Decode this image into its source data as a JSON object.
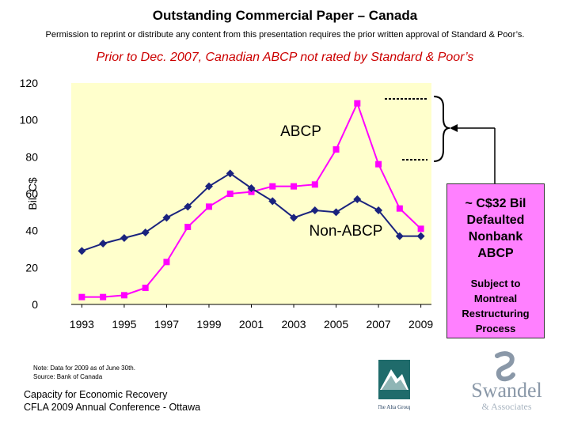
{
  "page": {
    "title": "Outstanding Commercial Paper – Canada",
    "permission": "Permission to reprint or distribute any content from this presentation requires the prior written approval of Standard & Poor’s.",
    "subtitle": "Prior to Dec. 2007, Canadian ABCP not rated by Standard & Poor’s",
    "note_lines": [
      "Note: Data for 2009 as of June 30th.",
      "Source: Bank of Canada"
    ],
    "footer_lines": [
      "Capacity for Economic Recovery",
      "CFLA 2009 Annual Conference - Ottawa"
    ]
  },
  "callout": {
    "headline": "~ C$32 Bil\nDefaulted\nNonbank\nABCP",
    "detail": "Subject to\nMontreal\nRestructuring\nProcess"
  },
  "logos": {
    "alta": "The Alta Group",
    "swandel_main": "Swandel",
    "swandel_sub": "& Associates"
  },
  "colors": {
    "plot_background": "#ffffcc",
    "abcp_series": "#ff00ff",
    "non_abcp_series": "#1a237e",
    "callout_background": "#ff80ff",
    "subtitle": "#cc0000"
  },
  "chart_data": {
    "type": "line",
    "ylabel": "Bil. C$",
    "xlabel": "",
    "ylim": [
      0,
      120
    ],
    "yticks": [
      0,
      20,
      40,
      60,
      80,
      100,
      120
    ],
    "x": [
      1993,
      1994,
      1995,
      1996,
      1997,
      1998,
      1999,
      2000,
      2001,
      2002,
      2003,
      2004,
      2005,
      2006,
      2007,
      2008,
      2009
    ],
    "xtick_labels": [
      "1993",
      "1995",
      "1997",
      "1999",
      "2001",
      "2003",
      "2005",
      "2007",
      "2009"
    ],
    "grid": false,
    "series": [
      {
        "name": "ABCP",
        "color": "#ff00ff",
        "marker": "square",
        "values": [
          4,
          4,
          5,
          9,
          23,
          42,
          53,
          60,
          61,
          64,
          64,
          65,
          84,
          109,
          76,
          52,
          41
        ]
      },
      {
        "name": "Non-ABCP",
        "color": "#1a237e",
        "marker": "diamond",
        "values": [
          29,
          33,
          36,
          39,
          47,
          53,
          64,
          71,
          63,
          56,
          47,
          51,
          50,
          57,
          51,
          37,
          37
        ]
      }
    ]
  }
}
